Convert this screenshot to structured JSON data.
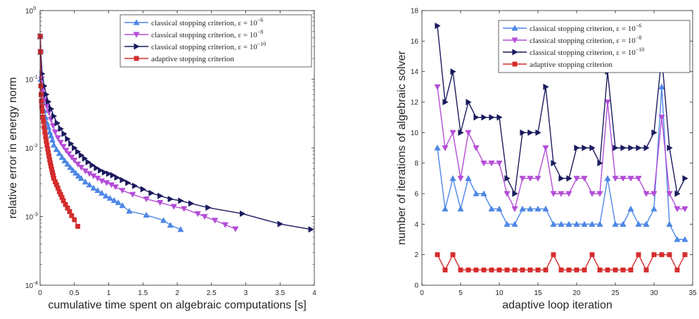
{
  "colors": {
    "classical_e6": "#4d86e6",
    "classical_e8": "#b44dd6",
    "classical_e10": "#1a1a5e",
    "adaptive": "#d42c2c",
    "axis": "#262626"
  },
  "chart_data": [
    {
      "type": "line",
      "yscale": "log",
      "xlabel": "cumulative time spent on algebraic computations [s]",
      "ylabel": "relative error in energy norm",
      "xlim": [
        0,
        4
      ],
      "ylim": [
        0.0001,
        1
      ],
      "xticks": [
        0,
        0.5,
        1,
        1.5,
        2,
        2.5,
        3,
        3.5,
        4
      ],
      "xtick_labels": [
        "0",
        "0.5",
        "1",
        "1.5",
        "2",
        "2.5",
        "3",
        "3.5",
        "4"
      ],
      "yticks": [
        0.0001,
        0.001,
        0.01,
        0.1,
        1
      ],
      "ytick_labels": [
        {
          "base": "10",
          "exp": "-4"
        },
        {
          "base": "10",
          "exp": "-3"
        },
        {
          "base": "10",
          "exp": "-2"
        },
        {
          "base": "10",
          "exp": "-1"
        },
        {
          "base": "10",
          "exp": "0"
        }
      ],
      "grid": false,
      "legend_position": "top-right",
      "series": [
        {
          "name": "classical stopping criterion, ε = 10",
          "name_exp": "−6",
          "marker": "triangle-up",
          "x": [
            0.002,
            0.005,
            0.01,
            0.02,
            0.04,
            0.06,
            0.08,
            0.1,
            0.12,
            0.14,
            0.16,
            0.18,
            0.2,
            0.24,
            0.28,
            0.32,
            0.36,
            0.4,
            0.44,
            0.48,
            0.52,
            0.56,
            0.6,
            0.66,
            0.72,
            0.78,
            0.84,
            0.9,
            0.96,
            1.02,
            1.08,
            1.14,
            1.2,
            1.3,
            1.55,
            1.8,
            1.9,
            2.05
          ],
          "y": [
            0.42,
            0.25,
            0.1,
            0.06,
            0.045,
            0.035,
            0.028,
            0.023,
            0.02,
            0.017,
            0.015,
            0.013,
            0.011,
            0.0095,
            0.0083,
            0.0073,
            0.0065,
            0.0058,
            0.0052,
            0.0047,
            0.0043,
            0.0039,
            0.0036,
            0.0032,
            0.0029,
            0.0026,
            0.0024,
            0.0022,
            0.002,
            0.00185,
            0.00172,
            0.0016,
            0.00145,
            0.0012,
            0.00105,
            0.00088,
            0.00075,
            0.00065
          ]
        },
        {
          "name": "classical stopping criterion, ε = 10",
          "name_exp": "−8",
          "marker": "triangle-down",
          "x": [
            0.003,
            0.008,
            0.02,
            0.04,
            0.07,
            0.1,
            0.13,
            0.16,
            0.19,
            0.22,
            0.26,
            0.3,
            0.34,
            0.38,
            0.42,
            0.46,
            0.5,
            0.55,
            0.6,
            0.66,
            0.72,
            0.78,
            0.84,
            0.9,
            0.97,
            1.04,
            1.1,
            1.2,
            1.35,
            1.55,
            1.75,
            1.95,
            2.1,
            2.3,
            2.4,
            2.55,
            2.7,
            2.85
          ],
          "y": [
            0.42,
            0.25,
            0.1,
            0.07,
            0.05,
            0.04,
            0.033,
            0.026,
            0.021,
            0.017,
            0.014,
            0.012,
            0.0105,
            0.0092,
            0.0082,
            0.0073,
            0.0066,
            0.0058,
            0.0052,
            0.0046,
            0.0042,
            0.0039,
            0.0036,
            0.0033,
            0.0031,
            0.0029,
            0.0027,
            0.0024,
            0.0021,
            0.0018,
            0.0016,
            0.0014,
            0.0013,
            0.0011,
            0.001,
            0.00088,
            0.00076,
            0.00066
          ]
        },
        {
          "name": "classical stopping criterion, ε = 10",
          "name_exp": "−10",
          "marker": "triangle-right",
          "x": [
            0.004,
            0.01,
            0.03,
            0.06,
            0.09,
            0.12,
            0.16,
            0.2,
            0.25,
            0.3,
            0.35,
            0.4,
            0.45,
            0.5,
            0.55,
            0.6,
            0.65,
            0.7,
            0.76,
            0.82,
            0.88,
            0.94,
            1.0,
            1.06,
            1.12,
            1.2,
            1.28,
            1.38,
            1.5,
            1.62,
            1.75,
            1.9,
            2.05,
            2.2,
            2.45,
            2.95,
            3.5,
            3.95
          ],
          "y": [
            0.42,
            0.25,
            0.12,
            0.08,
            0.06,
            0.047,
            0.037,
            0.029,
            0.023,
            0.019,
            0.016,
            0.0135,
            0.0115,
            0.01,
            0.0088,
            0.0078,
            0.007,
            0.0062,
            0.0056,
            0.0051,
            0.0047,
            0.0044,
            0.0042,
            0.004,
            0.0037,
            0.0034,
            0.0031,
            0.0028,
            0.0025,
            0.0022,
            0.002,
            0.0018,
            0.0017,
            0.00155,
            0.00135,
            0.0011,
            0.00078,
            0.00065
          ]
        },
        {
          "name": "adaptive stopping criterion",
          "name_exp": "",
          "marker": "square",
          "x": [
            0.002,
            0.005,
            0.01,
            0.015,
            0.02,
            0.025,
            0.03,
            0.04,
            0.05,
            0.06,
            0.07,
            0.08,
            0.09,
            0.1,
            0.11,
            0.12,
            0.13,
            0.14,
            0.15,
            0.16,
            0.17,
            0.18,
            0.19,
            0.2,
            0.22,
            0.24,
            0.26,
            0.28,
            0.3,
            0.32,
            0.34,
            0.37,
            0.4,
            0.43,
            0.46,
            0.5,
            0.55
          ],
          "y": [
            0.42,
            0.25,
            0.08,
            0.06,
            0.048,
            0.04,
            0.034,
            0.028,
            0.024,
            0.02,
            0.017,
            0.0145,
            0.0125,
            0.011,
            0.0097,
            0.0086,
            0.0076,
            0.0067,
            0.006,
            0.0054,
            0.0049,
            0.0044,
            0.004,
            0.0036,
            0.0032,
            0.0029,
            0.0026,
            0.0023,
            0.0021,
            0.0019,
            0.0017,
            0.0015,
            0.00133,
            0.00118,
            0.00103,
            0.0009,
            0.00072
          ]
        }
      ]
    },
    {
      "type": "line",
      "yscale": "linear",
      "xlabel": "adaptive loop iteration",
      "ylabel": "number of iterations of algebraic solver",
      "xlim": [
        0,
        35
      ],
      "ylim": [
        0,
        18
      ],
      "xticks": [
        0,
        5,
        10,
        15,
        20,
        25,
        30,
        35
      ],
      "xtick_labels": [
        "0",
        "5",
        "10",
        "15",
        "20",
        "25",
        "30",
        "35"
      ],
      "yticks": [
        0,
        2,
        4,
        6,
        8,
        10,
        12,
        14,
        16,
        18
      ],
      "ytick_labels": [
        "0",
        "2",
        "4",
        "6",
        "8",
        "10",
        "12",
        "14",
        "16",
        "18"
      ],
      "grid": false,
      "legend_position": "top-right",
      "series": [
        {
          "name": "classical stopping criterion, ε = 10",
          "name_exp": "−6",
          "marker": "triangle-up",
          "x": [
            2,
            3,
            4,
            5,
            6,
            7,
            8,
            9,
            10,
            11,
            12,
            13,
            14,
            15,
            16,
            17,
            18,
            19,
            20,
            21,
            22,
            23,
            24,
            25,
            26,
            27,
            28,
            29,
            30,
            31,
            32,
            33,
            34
          ],
          "y": [
            9,
            5,
            7,
            5,
            7,
            6,
            6,
            5,
            5,
            4,
            4,
            5,
            5,
            5,
            5,
            4,
            4,
            4,
            4,
            4,
            4,
            4,
            7,
            4,
            4,
            5,
            4,
            4,
            5,
            13,
            4,
            3,
            3
          ]
        },
        {
          "name": "classical stopping criterion, ε = 10",
          "name_exp": "−8",
          "marker": "triangle-down",
          "x": [
            2,
            3,
            4,
            5,
            6,
            7,
            8,
            9,
            10,
            11,
            12,
            13,
            14,
            15,
            16,
            17,
            18,
            19,
            20,
            21,
            22,
            23,
            24,
            25,
            26,
            27,
            28,
            29,
            30,
            31,
            32,
            33,
            34
          ],
          "y": [
            13,
            9,
            10,
            7,
            10,
            9,
            8,
            8,
            8,
            6,
            5,
            7,
            7,
            7,
            9,
            6,
            6,
            6,
            7,
            7,
            6,
            6,
            12,
            7,
            7,
            7,
            7,
            6,
            6,
            11,
            6,
            5,
            5
          ]
        },
        {
          "name": "classical stopping criterion, ε = 10",
          "name_exp": "−10",
          "marker": "triangle-right",
          "x": [
            2,
            3,
            4,
            5,
            6,
            7,
            8,
            9,
            10,
            11,
            12,
            13,
            14,
            15,
            16,
            17,
            18,
            19,
            20,
            21,
            22,
            23,
            24,
            25,
            26,
            27,
            28,
            29,
            30,
            31,
            32,
            33,
            34
          ],
          "y": [
            17,
            12,
            14,
            10,
            12,
            11,
            11,
            11,
            11,
            7,
            6,
            10,
            10,
            10,
            13,
            8,
            7,
            7,
            9,
            9,
            9,
            8,
            14,
            9,
            9,
            9,
            9,
            9,
            10,
            15,
            9,
            6,
            7
          ]
        },
        {
          "name": "adaptive stopping criterion",
          "name_exp": "",
          "marker": "square",
          "x": [
            2,
            3,
            4,
            5,
            6,
            7,
            8,
            9,
            10,
            11,
            12,
            13,
            14,
            15,
            16,
            17,
            18,
            19,
            20,
            21,
            22,
            23,
            24,
            25,
            26,
            27,
            28,
            29,
            30,
            31,
            32,
            33,
            34
          ],
          "y": [
            2,
            1,
            2,
            1,
            1,
            1,
            1,
            1,
            1,
            1,
            1,
            1,
            1,
            1,
            1,
            2,
            1,
            1,
            1,
            1,
            2,
            1,
            1,
            1,
            1,
            1,
            2,
            1,
            2,
            2,
            2,
            1,
            2
          ]
        }
      ]
    }
  ]
}
